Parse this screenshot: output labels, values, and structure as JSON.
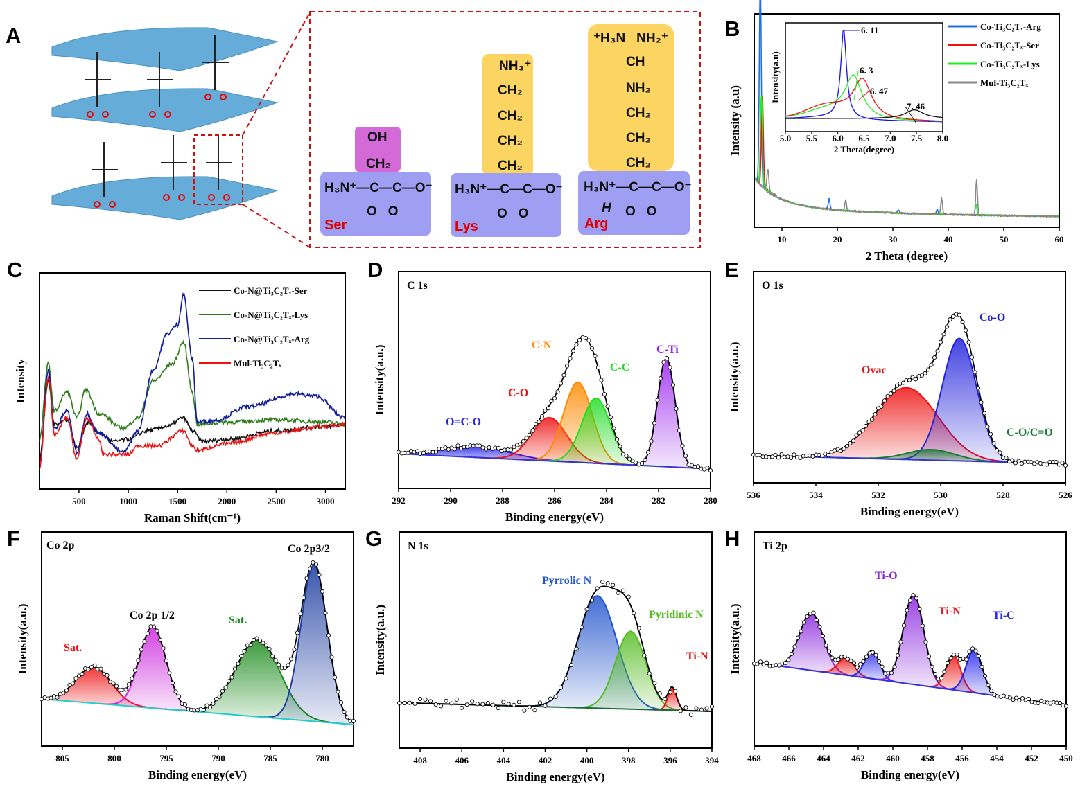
{
  "panel_letters": {
    "A": "A",
    "B": "B",
    "C": "C",
    "D": "D",
    "E": "E",
    "F": "F",
    "G": "G",
    "H": "H"
  },
  "panel_a": {
    "ser": {
      "name": "Ser",
      "side": [
        "OH",
        "CH₂"
      ],
      "backbone": "H₃N⁺—C—C—O⁻",
      "carbonyl": "O   O",
      "color_side": "#d46ad8"
    },
    "lys": {
      "name": "Lys",
      "side": [
        "NH₃⁺",
        "CH₂",
        "CH₂",
        "CH₂",
        "CH₂"
      ],
      "backbone": "H₃N⁺—C—C—O⁻",
      "carbonyl": "O   O",
      "color_side": "#fcd462"
    },
    "arg": {
      "name": "Arg",
      "side": [
        "⁺H₃N   NH₂⁺",
        "CH",
        "NH₂",
        "CH₂",
        "CH₂",
        "CH₂"
      ],
      "backbone": "H₃N⁺—C—C—O⁻",
      "carbonyl": "O   O",
      "h_label": "H",
      "color_side": "#fcd462"
    },
    "card_color": "#9e9ef2",
    "name_color": "#e00000"
  },
  "chart_data": [
    {
      "id": "B",
      "type": "line",
      "xlabel": "2 Theta (degree)",
      "ylabel": "Intensity (a.u)",
      "xlim": [
        5,
        60
      ],
      "ylim": [
        0,
        1
      ],
      "xticks": [
        10,
        20,
        30,
        40,
        50,
        60
      ],
      "legend": "top-right",
      "series": [
        {
          "name": "Co-Ti₃C₂Tₓ-Arg",
          "color": "#1f6fe0",
          "peaks": [
            [
              6.1,
              0.95
            ],
            [
              18.5,
              0.05
            ],
            [
              31,
              0.015
            ],
            [
              38,
              0.02
            ]
          ]
        },
        {
          "name": "Co-Ti₃C₂Tₓ-Ser",
          "color": "#ee1111",
          "peaks": [
            [
              6.47,
              0.42
            ]
          ]
        },
        {
          "name": "Co-Ti₃C₂Tₓ-Lys",
          "color": "#22ee22",
          "peaks": [
            [
              6.3,
              0.42
            ],
            [
              45,
              0.05
            ]
          ]
        },
        {
          "name": "Mul-Ti₃C₂Tₓ",
          "color": "#888888",
          "peaks": [
            [
              7.46,
              0.1
            ],
            [
              21.5,
              0.05
            ],
            [
              38.8,
              0.08
            ],
            [
              45.1,
              0.17
            ]
          ]
        }
      ],
      "inset": {
        "xlabel": "2 Theta(degree)",
        "ylabel": "Intensity(a.u)",
        "xlim": [
          5.0,
          8.0
        ],
        "xticks": [
          "5.0",
          "5.5",
          "6.0",
          "6.5",
          "7.0",
          "7.5",
          "8.0"
        ],
        "peak_labels": [
          {
            "value": "6. 11",
            "x": 6.11,
            "color": "#1111ee"
          },
          {
            "value": "6. 3",
            "x": 6.3,
            "color": "#22ee22"
          },
          {
            "value": "6. 47",
            "x": 6.47,
            "color": "#ee1111"
          },
          {
            "value": "7. 46",
            "x": 7.46,
            "color": "#111111"
          }
        ]
      }
    },
    {
      "id": "C",
      "type": "line",
      "xlabel": "Raman Shift(cm⁻¹)",
      "ylabel": "Intensity",
      "xlim": [
        100,
        3200
      ],
      "ylim": [
        0,
        1
      ],
      "xticks": [
        500,
        1000,
        1500,
        2000,
        2500,
        3000
      ],
      "legend": "top-right",
      "series": [
        {
          "name": "Co-N@Ti₃C₂Tₓ-Ser",
          "color": "#111111",
          "points": [
            [
              100,
              0.14
            ],
            [
              190,
              0.5
            ],
            [
              250,
              0.3
            ],
            [
              380,
              0.32
            ],
            [
              480,
              0.19
            ],
            [
              590,
              0.31
            ],
            [
              700,
              0.26
            ],
            [
              850,
              0.22
            ],
            [
              1000,
              0.23
            ],
            [
              1200,
              0.27
            ],
            [
              1400,
              0.29
            ],
            [
              1560,
              0.33
            ],
            [
              1650,
              0.27
            ],
            [
              1750,
              0.22
            ],
            [
              2000,
              0.23
            ],
            [
              2500,
              0.27
            ],
            [
              3000,
              0.29
            ],
            [
              3200,
              0.3
            ]
          ]
        },
        {
          "name": "Co-N@Ti₃C₂Tₓ-Lys",
          "color": "#2e7d1a",
          "points": [
            [
              100,
              0.23
            ],
            [
              190,
              0.58
            ],
            [
              250,
              0.36
            ],
            [
              380,
              0.45
            ],
            [
              480,
              0.33
            ],
            [
              570,
              0.46
            ],
            [
              700,
              0.35
            ],
            [
              950,
              0.28
            ],
            [
              1100,
              0.33
            ],
            [
              1250,
              0.5
            ],
            [
              1450,
              0.58
            ],
            [
              1560,
              0.68
            ],
            [
              1650,
              0.45
            ],
            [
              1700,
              0.3
            ],
            [
              2000,
              0.31
            ],
            [
              2500,
              0.32
            ],
            [
              3000,
              0.31
            ],
            [
              3200,
              0.3
            ]
          ]
        },
        {
          "name": "Co-N@Ti₃C₂Tₓ-Arg",
          "color": "#101a9a",
          "points": [
            [
              100,
              0.12
            ],
            [
              190,
              0.55
            ],
            [
              250,
              0.28
            ],
            [
              380,
              0.36
            ],
            [
              480,
              0.17
            ],
            [
              580,
              0.35
            ],
            [
              700,
              0.26
            ],
            [
              950,
              0.17
            ],
            [
              1100,
              0.27
            ],
            [
              1250,
              0.55
            ],
            [
              1400,
              0.72
            ],
            [
              1500,
              0.76
            ],
            [
              1560,
              0.9
            ],
            [
              1650,
              0.6
            ],
            [
              1700,
              0.31
            ],
            [
              1900,
              0.32
            ],
            [
              2200,
              0.38
            ],
            [
              2700,
              0.44
            ],
            [
              2900,
              0.43
            ],
            [
              3200,
              0.33
            ]
          ]
        },
        {
          "name": "Mul-Ti₃C₂Tₓ",
          "color": "#ee1111",
          "points": [
            [
              100,
              0.1
            ],
            [
              190,
              0.52
            ],
            [
              250,
              0.25
            ],
            [
              380,
              0.33
            ],
            [
              480,
              0.14
            ],
            [
              580,
              0.33
            ],
            [
              700,
              0.23
            ],
            [
              750,
              0.16
            ],
            [
              1000,
              0.16
            ],
            [
              1100,
              0.2
            ],
            [
              1300,
              0.2
            ],
            [
              1560,
              0.27
            ],
            [
              1650,
              0.2
            ],
            [
              1700,
              0.18
            ],
            [
              2000,
              0.21
            ],
            [
              2500,
              0.26
            ],
            [
              3000,
              0.29
            ],
            [
              3200,
              0.3
            ]
          ]
        }
      ]
    },
    {
      "id": "D",
      "type": "area",
      "title": "C 1s",
      "xlabel": "Binding energy(eV)",
      "ylabel": "Intensity(a.u.)",
      "xlim": [
        292,
        280
      ],
      "ylim": [
        0,
        1
      ],
      "xticks": [
        292,
        290,
        288,
        286,
        284,
        282,
        280
      ],
      "baseline": [
        0.16,
        0.09
      ],
      "peaks": [
        {
          "label": "O=C-O",
          "center": 289,
          "height": 0.05,
          "fwhm": 3.0,
          "color": "#2222ee"
        },
        {
          "label": "C-O",
          "center": 286.2,
          "height": 0.2,
          "fwhm": 1.6,
          "color": "#ee1111"
        },
        {
          "label": "C-N",
          "center": 285.1,
          "height": 0.37,
          "fwhm": 1.3,
          "color": "#ff8a00"
        },
        {
          "label": "C-C",
          "center": 284.4,
          "height": 0.3,
          "fwhm": 1.3,
          "color": "#22dd22"
        },
        {
          "label": "C-Ti",
          "center": 281.7,
          "height": 0.5,
          "fwhm": 0.8,
          "color": "#9922ee"
        }
      ]
    },
    {
      "id": "E",
      "type": "area",
      "title": "O 1s",
      "xlabel": "Binding energy(eV)",
      "ylabel": "Intensity(a.u.)",
      "xlim": [
        536,
        526
      ],
      "ylim": [
        0,
        1
      ],
      "xticks": [
        536,
        534,
        532,
        530,
        528,
        526
      ],
      "baseline": [
        0.13,
        0.09
      ],
      "peaks": [
        {
          "label": "Ovac",
          "center": 531.1,
          "height": 0.34,
          "fwhm": 2.4,
          "color": "#ee1111"
        },
        {
          "label": "Co-O",
          "center": 529.4,
          "height": 0.58,
          "fwhm": 1.3,
          "color": "#2222dd"
        },
        {
          "label": "C-O/C=O",
          "center": 530.3,
          "height": 0.05,
          "fwhm": 1.8,
          "color": "#1b7a3a"
        }
      ]
    },
    {
      "id": "F",
      "type": "area",
      "title": "Co 2p",
      "xlabel": "Binding energy(eV)",
      "ylabel": "Intensity(a.u.)",
      "xlim": [
        807,
        777
      ],
      "ylim": [
        0,
        1
      ],
      "xticks": [
        805,
        800,
        795,
        790,
        785,
        780
      ],
      "baseline": [
        0.22,
        0.1
      ],
      "peaks": [
        {
          "label": "Sat.",
          "center": 802,
          "height": 0.17,
          "fwhm": 4,
          "color": "#ee1111"
        },
        {
          "label": "Co 2p 1/2",
          "center": 796.3,
          "height": 0.38,
          "fwhm": 3,
          "color": "#cc22dd"
        },
        {
          "label": "Sat.",
          "center": 786.2,
          "height": 0.36,
          "fwhm": 5,
          "color": "#1a8a1a"
        },
        {
          "label": "Co 2p3/2",
          "center": 780.8,
          "height": 0.73,
          "fwhm": 3,
          "color": "#1a3aa0"
        }
      ]
    },
    {
      "id": "G",
      "type": "area",
      "title": "N 1s",
      "xlabel": "Binding energy(eV)",
      "ylabel": "Intensity(a.u.)",
      "xlim": [
        409,
        394
      ],
      "ylim": [
        0,
        1
      ],
      "xticks": [
        408,
        406,
        404,
        402,
        400,
        398,
        396,
        394
      ],
      "baseline": [
        0.21,
        0.17
      ],
      "peaks": [
        {
          "label": "Pyrrolic N",
          "center": 399.5,
          "height": 0.52,
          "fwhm": 2.2,
          "color": "#2255cc"
        },
        {
          "label": "Pyridinic N",
          "center": 397.9,
          "height": 0.36,
          "fwhm": 1.7,
          "color": "#55bb22"
        },
        {
          "label": "Ti-N",
          "center": 395.9,
          "height": 0.1,
          "fwhm": 0.5,
          "color": "#ee1111"
        }
      ]
    },
    {
      "id": "H",
      "type": "area",
      "title": "Ti 2p",
      "xlabel": "Binding energy(eV)",
      "ylabel": "Intensity(a.u.)",
      "xlim": [
        468,
        450
      ],
      "ylim": [
        0,
        1
      ],
      "xticks": [
        468,
        466,
        464,
        462,
        460,
        458,
        456,
        454,
        452,
        450
      ],
      "baseline": [
        0.39,
        0.19
      ],
      "peaks": [
        {
          "label": "",
          "center": 464.7,
          "height": 0.27,
          "fwhm": 1.6,
          "color": "#8822dd"
        },
        {
          "label": "",
          "center": 462.7,
          "height": 0.08,
          "fwhm": 1.1,
          "color": "#ee1111"
        },
        {
          "label": "",
          "center": 461.2,
          "height": 0.13,
          "fwhm": 1.0,
          "color": "#2222ee"
        },
        {
          "label": "Ti-O",
          "center": 458.8,
          "height": 0.42,
          "fwhm": 1.4,
          "color": "#8822dd"
        },
        {
          "label": "Ti-N",
          "center": 456.5,
          "height": 0.16,
          "fwhm": 1.0,
          "color": "#ee1111"
        },
        {
          "label": "Ti-C",
          "center": 455.3,
          "height": 0.2,
          "fwhm": 1.1,
          "color": "#2222ee"
        }
      ]
    }
  ]
}
